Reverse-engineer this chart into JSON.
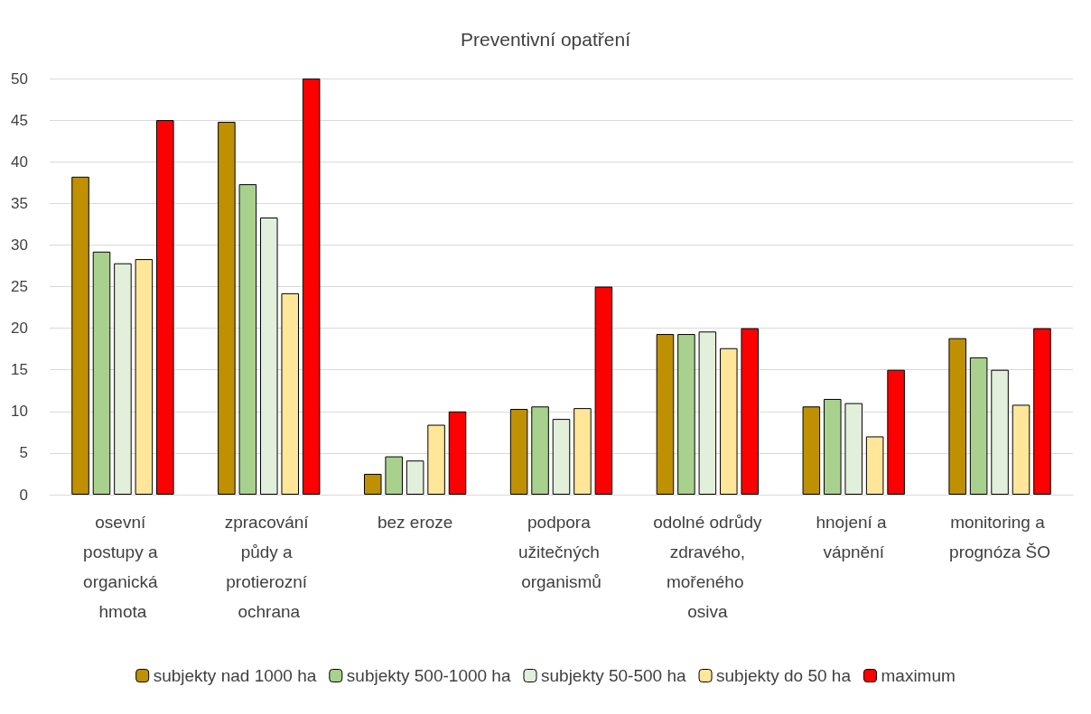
{
  "chart_data": {
    "type": "bar",
    "title": "Preventivní opatření",
    "categories": [
      "osevní postupy a organická hmota",
      "zpracování půdy a protierozní ochrana",
      "bez eroze",
      "podpora užitečných organismů",
      "odolné odrůdy zdravého, mořeného osiva",
      "hnojení a vápnění",
      "monitoring a prognóza ŠO"
    ],
    "series": [
      {
        "name": "subjekty nad 1000 ha",
        "color": "#bf9000",
        "values": [
          38.2,
          44.8,
          2.5,
          10.3,
          19.3,
          10.6,
          18.8
        ]
      },
      {
        "name": "subjekty 500-1000 ha",
        "color": "#a9d18e",
        "values": [
          29.2,
          37.3,
          4.6,
          10.6,
          19.3,
          11.5,
          16.5
        ]
      },
      {
        "name": "subjekty 50-500 ha",
        "color": "#e2efda",
        "values": [
          27.8,
          33.3,
          4.1,
          9.1,
          19.6,
          11.0,
          15.0
        ]
      },
      {
        "name": "subjekty do 50 ha",
        "color": "#ffe699",
        "values": [
          28.3,
          24.2,
          8.4,
          10.4,
          17.6,
          7.0,
          10.8
        ]
      },
      {
        "name": "maximum",
        "color": "#ff0000",
        "values": [
          45,
          50,
          10,
          25,
          20,
          15,
          20
        ]
      }
    ],
    "ylim": [
      0,
      50
    ],
    "yticks": [
      0,
      5,
      10,
      15,
      20,
      25,
      30,
      35,
      40,
      45,
      50
    ],
    "grid": "y",
    "legend": "bottom"
  }
}
